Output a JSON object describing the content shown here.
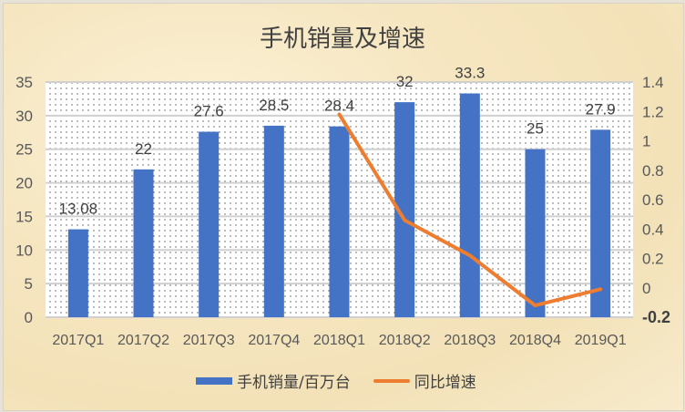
{
  "title": "手机销量及增速",
  "chart_data": {
    "type": "bar+line",
    "title": "手机销量及增速",
    "categories": [
      "2017Q1",
      "2017Q2",
      "2017Q3",
      "2017Q4",
      "2018Q1",
      "2018Q2",
      "2018Q3",
      "2018Q4",
      "2019Q1"
    ],
    "series": [
      {
        "name": "手机销量/百万台",
        "type": "bar",
        "axis": "left",
        "color": "#4472c4",
        "values": [
          13.08,
          22,
          27.6,
          28.5,
          28.4,
          32,
          33.3,
          25,
          27.9
        ],
        "labels": [
          "13.08",
          "22",
          "27.6",
          "28.5",
          "28.4",
          "32",
          "33.3",
          "25",
          "27.9"
        ]
      },
      {
        "name": "同比增速",
        "type": "line",
        "axis": "right",
        "color": "#ed7d31",
        "values": [
          null,
          null,
          null,
          null,
          1.18,
          0.46,
          0.22,
          -0.12,
          -0.01
        ]
      }
    ],
    "left_axis": {
      "ticks": [
        "35",
        "30",
        "25",
        "20",
        "15",
        "10",
        "5",
        "0"
      ],
      "ylim": [
        0,
        35
      ]
    },
    "right_axis": {
      "ticks": [
        "1.4",
        "1.2",
        "1",
        "0.8",
        "0.6",
        "0.4",
        "0.2",
        "0",
        "-0.2"
      ],
      "ylim": [
        -0.2,
        1.4
      ]
    },
    "grid": true,
    "legend_position": "bottom"
  },
  "legend": {
    "bar": "手机销量/百万台",
    "line": "同比增速"
  }
}
